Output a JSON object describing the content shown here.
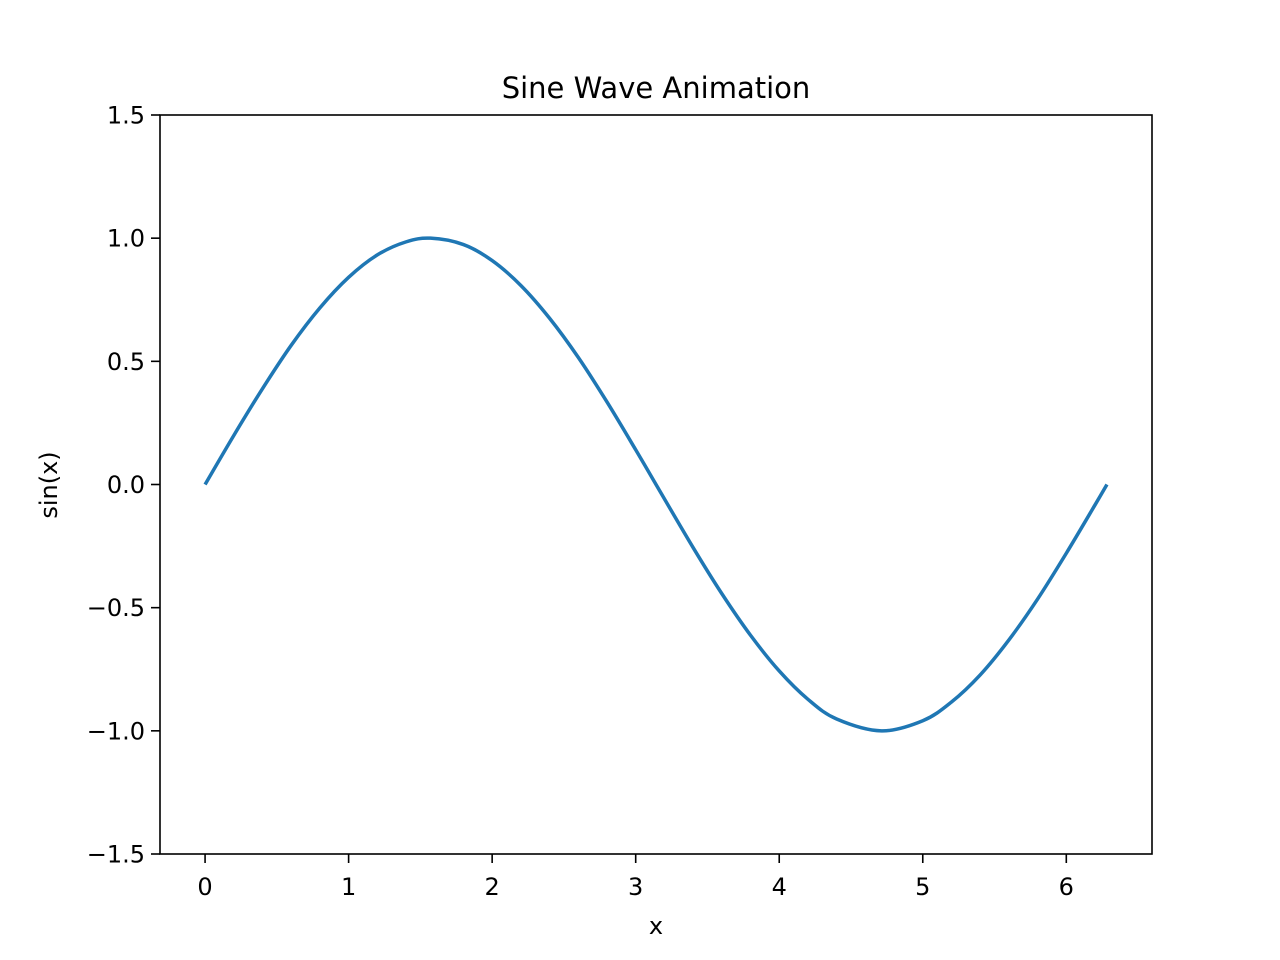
{
  "chart_data": {
    "type": "line",
    "title": "Sine Wave Animation",
    "xlabel": "x",
    "ylabel": "sin(x)",
    "xlim": [
      -0.314,
      6.597
    ],
    "ylim": [
      -1.5,
      1.5
    ],
    "x_ticks": [
      0,
      1,
      2,
      3,
      4,
      5,
      6
    ],
    "x_tick_labels": [
      "0",
      "1",
      "2",
      "3",
      "4",
      "5",
      "6"
    ],
    "y_ticks": [
      -1.5,
      -1.0,
      -0.5,
      0.0,
      0.5,
      1.0,
      1.5
    ],
    "y_tick_labels": [
      "−1.5",
      "−1.0",
      "−0.5",
      "0.0",
      "0.5",
      "1.0",
      "1.5"
    ],
    "grid": false,
    "series": [
      {
        "color": "#1f77b4",
        "x": [
          0.0,
          0.2,
          0.4,
          0.6,
          0.8,
          1.0,
          1.2,
          1.4,
          1.5708,
          1.8,
          2.0,
          2.2,
          2.4,
          2.6,
          2.8,
          3.0,
          3.1416,
          3.4,
          3.6,
          3.8,
          4.0,
          4.2,
          4.4,
          4.7124,
          5.0,
          5.2,
          5.4,
          5.6,
          5.8,
          6.0,
          6.2,
          6.2832
        ],
        "y": [
          0.0,
          0.199,
          0.389,
          0.565,
          0.717,
          0.841,
          0.932,
          0.985,
          1.0,
          0.974,
          0.909,
          0.808,
          0.675,
          0.516,
          0.335,
          0.141,
          0.0,
          -0.256,
          -0.443,
          -0.612,
          -0.757,
          -0.872,
          -0.952,
          -1.0,
          -0.959,
          -0.883,
          -0.773,
          -0.631,
          -0.465,
          -0.279,
          -0.083,
          0.0
        ]
      }
    ]
  }
}
